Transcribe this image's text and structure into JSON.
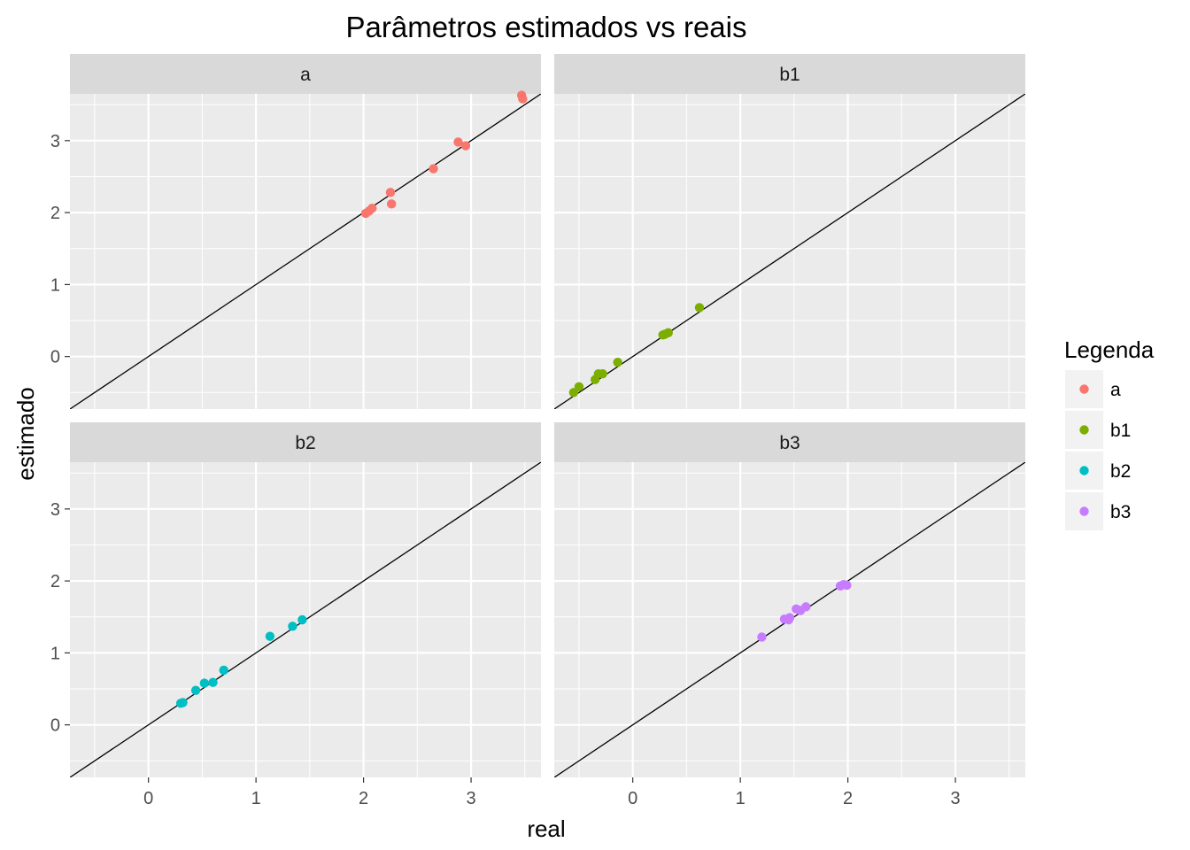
{
  "chart_data": {
    "type": "scatter",
    "title": "Parâmetros estimados vs reais",
    "xlabel": "real",
    "ylabel": "estimado",
    "xlim": [
      -0.73,
      3.65
    ],
    "ylim": [
      -0.73,
      3.65
    ],
    "x_ticks": [
      0,
      1,
      2,
      3
    ],
    "y_ticks": [
      0,
      1,
      2,
      3
    ],
    "reference_line": {
      "slope": 1,
      "intercept": 0
    },
    "grid": true,
    "legend": {
      "title": "Legenda",
      "position": "right",
      "entries": [
        {
          "label": "a",
          "color": "#F8766D"
        },
        {
          "label": "b1",
          "color": "#7CAE00"
        },
        {
          "label": "b2",
          "color": "#00BFC4"
        },
        {
          "label": "b3",
          "color": "#C77CFF"
        }
      ]
    },
    "facets": [
      {
        "label": "a",
        "color": "#F8766D",
        "points": [
          [
            2.02,
            1.99
          ],
          [
            2.05,
            2.02
          ],
          [
            2.08,
            2.06
          ],
          [
            2.25,
            2.28
          ],
          [
            2.26,
            2.12
          ],
          [
            2.65,
            2.61
          ],
          [
            2.88,
            2.98
          ],
          [
            2.95,
            2.93
          ],
          [
            3.47,
            3.63
          ],
          [
            3.48,
            3.58
          ]
        ]
      },
      {
        "label": "b1",
        "color": "#7CAE00",
        "points": [
          [
            -0.55,
            -0.5
          ],
          [
            -0.5,
            -0.42
          ],
          [
            -0.35,
            -0.32
          ],
          [
            -0.32,
            -0.24
          ],
          [
            -0.28,
            -0.24
          ],
          [
            -0.14,
            -0.08
          ],
          [
            0.28,
            0.3
          ],
          [
            0.3,
            0.31
          ],
          [
            0.33,
            0.33
          ],
          [
            0.62,
            0.68
          ]
        ]
      },
      {
        "label": "b2",
        "color": "#00BFC4",
        "points": [
          [
            0.3,
            0.3
          ],
          [
            0.32,
            0.31
          ],
          [
            0.44,
            0.48
          ],
          [
            0.52,
            0.58
          ],
          [
            0.6,
            0.59
          ],
          [
            0.7,
            0.76
          ],
          [
            1.13,
            1.23
          ],
          [
            1.34,
            1.37
          ],
          [
            1.43,
            1.46
          ]
        ]
      },
      {
        "label": "b3",
        "color": "#C77CFF",
        "points": [
          [
            1.2,
            1.22
          ],
          [
            1.41,
            1.47
          ],
          [
            1.45,
            1.46
          ],
          [
            1.46,
            1.49
          ],
          [
            1.52,
            1.61
          ],
          [
            1.56,
            1.59
          ],
          [
            1.61,
            1.64
          ],
          [
            1.93,
            1.93
          ],
          [
            1.96,
            1.95
          ],
          [
            1.99,
            1.94
          ]
        ]
      }
    ]
  }
}
